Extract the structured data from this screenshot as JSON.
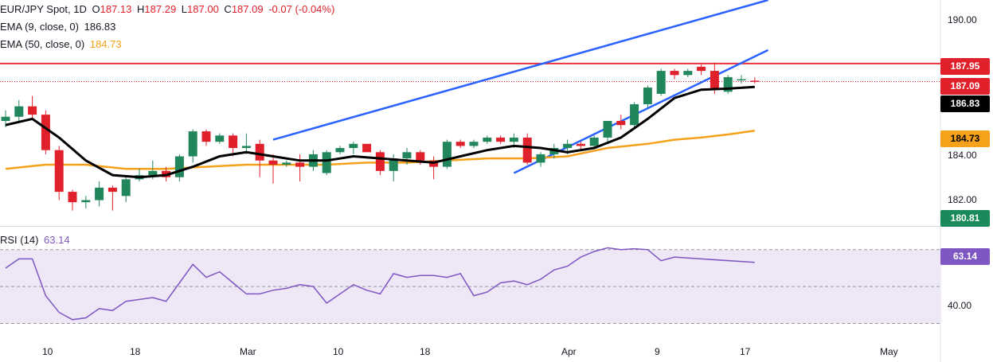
{
  "legend": {
    "symbol_line": {
      "name": "EUR/JPY Spot, 1D",
      "o_label": "O",
      "o_value": "187.13",
      "h_label": "H",
      "h_value": "187.29",
      "l_label": "L",
      "l_value": "187.00",
      "c_label": "C",
      "c_value": "187.09",
      "change": "-0.07 (-0.04%)"
    },
    "ema9_line": {
      "name": "EMA (9, close, 0)",
      "value": "186.83"
    },
    "ema50_line": {
      "name": "EMA (50, close, 0)",
      "value": "184.73"
    },
    "rsi_line": {
      "name": "RSI (14)",
      "value": "63.14"
    }
  },
  "colors": {
    "up": "#22865c",
    "down": "#e0202b",
    "ema9": "#000000",
    "ema50": "#f6a11a",
    "trendline": "#2962ff",
    "resistance": "#e8323c",
    "rsi_line": "#7e57c2",
    "rsi_band": "#ede7f6",
    "tag_green": "#1b8a5a",
    "tag_orange": "#f6a11a",
    "tag_red": "#e0202b",
    "tag_black": "#000000",
    "tag_purple": "#7e57c2"
  },
  "price_axis": {
    "ticks": [
      "190.00",
      "184.00",
      "182.00"
    ]
  },
  "rsi_axis": {
    "ticks": [
      "40.00"
    ]
  },
  "time_axis": {
    "ticks": [
      "10",
      "18",
      "Mar",
      "10",
      "18",
      "Apr",
      "9",
      "17",
      "May"
    ]
  },
  "price_tags": {
    "resistance": "187.95",
    "close": "187.09",
    "ema9": "186.83",
    "ema50": "184.73",
    "low": "180.81",
    "rsi": "63.14"
  },
  "chart_data": {
    "type": "candlestick",
    "title": "EUR/JPY Spot, 1D",
    "ylim": [
      180.2,
      191.0
    ],
    "rsi_ylim": [
      22,
      82
    ],
    "rsi_levels": [
      70,
      50,
      30
    ],
    "resistance_level": 187.95,
    "last_close": 187.09,
    "channel_upper": [
      [
        20,
        184.3
      ],
      [
        57,
        191.0
      ]
    ],
    "channel_lower": [
      [
        38,
        182.7
      ],
      [
        57,
        188.6
      ]
    ],
    "ohlc": [
      [
        0,
        185.2,
        185.7,
        184.9,
        185.4
      ],
      [
        1,
        185.4,
        186.2,
        185.2,
        185.9
      ],
      [
        2,
        185.9,
        186.4,
        185.3,
        185.5
      ],
      [
        3,
        185.5,
        185.7,
        183.6,
        183.8
      ],
      [
        4,
        183.8,
        184.0,
        181.4,
        181.8
      ],
      [
        5,
        181.8,
        181.9,
        180.9,
        181.3
      ],
      [
        6,
        181.3,
        181.6,
        181.0,
        181.4
      ],
      [
        7,
        181.4,
        182.3,
        181.1,
        182.0
      ],
      [
        8,
        182.0,
        182.1,
        180.9,
        181.8
      ],
      [
        9,
        181.6,
        182.6,
        181.3,
        182.4
      ],
      [
        10,
        182.4,
        182.9,
        182.3,
        182.6
      ],
      [
        11,
        182.6,
        183.3,
        182.4,
        182.8
      ],
      [
        12,
        182.8,
        183.0,
        182.3,
        182.5
      ],
      [
        13,
        182.5,
        183.6,
        182.3,
        183.5
      ],
      [
        14,
        183.5,
        184.8,
        183.2,
        184.7
      ],
      [
        15,
        184.7,
        184.8,
        184.0,
        184.2
      ],
      [
        16,
        184.2,
        184.6,
        184.1,
        184.5
      ],
      [
        17,
        184.5,
        184.6,
        183.5,
        183.9
      ],
      [
        18,
        183.9,
        184.6,
        183.6,
        184.0
      ],
      [
        19,
        184.1,
        184.3,
        182.5,
        183.3
      ]
    ],
    "ohlc_part2": [
      [
        20,
        183.3,
        183.6,
        182.2,
        183.1
      ],
      [
        21,
        183.1,
        183.3,
        183.0,
        183.2
      ],
      [
        22,
        183.2,
        183.6,
        182.3,
        183.0
      ],
      [
        23,
        183.0,
        183.8,
        182.8,
        183.6
      ],
      [
        24,
        182.7,
        183.8,
        182.6,
        183.7
      ],
      [
        25,
        183.7,
        184.0,
        183.6,
        183.9
      ],
      [
        26,
        183.9,
        184.2,
        183.6,
        184.1
      ],
      [
        27,
        184.1,
        184.1,
        183.8,
        183.7
      ],
      [
        28,
        183.7,
        183.8,
        182.6,
        182.8
      ],
      [
        29,
        182.8,
        183.6,
        182.3,
        183.4
      ],
      [
        30,
        183.4,
        183.9,
        183.1,
        183.7
      ],
      [
        31,
        183.7,
        183.8,
        183.1,
        183.3
      ],
      [
        32,
        183.3,
        183.5,
        182.4,
        183.0
      ],
      [
        33,
        183.0,
        184.3,
        182.9,
        184.2
      ],
      [
        34,
        184.2,
        184.3,
        183.9,
        184.0
      ],
      [
        35,
        184.0,
        184.3,
        183.9,
        184.2
      ],
      [
        36,
        184.2,
        184.5,
        184.1,
        184.4
      ],
      [
        37,
        184.4,
        184.5,
        184.1,
        184.2
      ],
      [
        38,
        184.2,
        184.6,
        183.9,
        184.4
      ],
      [
        39,
        184.4,
        184.6,
        183.1,
        183.2
      ]
    ],
    "ohlc_part3": [
      [
        40,
        183.2,
        183.7,
        183.0,
        183.6
      ],
      [
        41,
        183.6,
        184.1,
        183.4,
        183.9
      ],
      [
        42,
        183.9,
        184.3,
        183.6,
        184.1
      ],
      [
        43,
        184.1,
        184.2,
        183.8,
        184.0
      ],
      [
        44,
        184.0,
        184.5,
        183.9,
        184.4
      ],
      [
        45,
        184.4,
        185.2,
        184.2,
        185.2
      ],
      [
        46,
        185.2,
        185.5,
        184.8,
        185.0
      ],
      [
        47,
        185.0,
        186.1,
        184.9,
        186.0
      ],
      [
        48,
        186.0,
        186.9,
        185.8,
        186.8
      ],
      [
        49,
        186.5,
        187.7,
        186.4,
        187.6
      ],
      [
        50,
        187.6,
        187.7,
        187.2,
        187.4
      ],
      [
        51,
        187.4,
        187.7,
        187.3,
        187.6
      ],
      [
        52,
        187.8,
        187.9,
        187.4,
        187.6
      ],
      [
        53,
        187.6,
        188.0,
        186.5,
        186.7
      ],
      [
        54,
        186.6,
        187.4,
        186.5,
        187.3
      ],
      [
        55,
        187.2,
        187.4,
        187.0,
        187.2
      ],
      [
        56,
        187.13,
        187.29,
        187.0,
        187.09
      ]
    ],
    "ema9": [
      [
        0,
        185.0
      ],
      [
        2,
        185.3
      ],
      [
        4,
        184.4
      ],
      [
        6,
        183.3
      ],
      [
        8,
        182.6
      ],
      [
        10,
        182.5
      ],
      [
        12,
        182.6
      ],
      [
        14,
        183.0
      ],
      [
        16,
        183.5
      ],
      [
        18,
        183.7
      ],
      [
        20,
        183.5
      ],
      [
        22,
        183.3
      ],
      [
        24,
        183.3
      ],
      [
        26,
        183.5
      ],
      [
        28,
        183.4
      ],
      [
        30,
        183.3
      ],
      [
        32,
        183.2
      ],
      [
        34,
        183.5
      ],
      [
        36,
        183.8
      ],
      [
        38,
        184.0
      ],
      [
        40,
        183.9
      ],
      [
        42,
        183.7
      ],
      [
        44,
        183.9
      ],
      [
        46,
        184.4
      ],
      [
        48,
        185.3
      ],
      [
        50,
        186.3
      ],
      [
        52,
        186.7
      ],
      [
        54,
        186.75
      ],
      [
        56,
        186.83
      ]
    ],
    "ema50": [
      [
        0,
        182.9
      ],
      [
        3,
        183.1
      ],
      [
        6,
        183.1
      ],
      [
        9,
        182.9
      ],
      [
        12,
        182.9
      ],
      [
        15,
        183.0
      ],
      [
        18,
        183.1
      ],
      [
        21,
        183.1
      ],
      [
        24,
        183.1
      ],
      [
        27,
        183.2
      ],
      [
        30,
        183.2
      ],
      [
        33,
        183.3
      ],
      [
        36,
        183.4
      ],
      [
        39,
        183.4
      ],
      [
        42,
        183.5
      ],
      [
        45,
        183.9
      ],
      [
        48,
        184.1
      ],
      [
        50,
        184.3
      ],
      [
        52,
        184.4
      ],
      [
        54,
        184.55
      ],
      [
        56,
        184.73
      ]
    ],
    "rsi": [
      [
        0,
        60
      ],
      [
        1,
        65
      ],
      [
        2,
        65
      ],
      [
        3,
        45
      ],
      [
        4,
        36
      ],
      [
        5,
        32
      ],
      [
        6,
        33
      ],
      [
        7,
        38
      ],
      [
        8,
        37
      ],
      [
        9,
        42
      ],
      [
        10,
        43
      ],
      [
        11,
        44
      ],
      [
        12,
        42
      ],
      [
        13,
        52
      ],
      [
        14,
        62
      ],
      [
        15,
        55
      ],
      [
        16,
        58
      ],
      [
        17,
        52
      ],
      [
        18,
        46
      ],
      [
        19,
        46
      ],
      [
        20,
        48
      ],
      [
        21,
        49
      ],
      [
        22,
        51
      ],
      [
        23,
        50
      ],
      [
        24,
        41
      ],
      [
        25,
        46
      ],
      [
        26,
        51
      ],
      [
        27,
        48
      ],
      [
        28,
        46
      ],
      [
        29,
        57
      ],
      [
        30,
        55
      ],
      [
        31,
        56
      ],
      [
        32,
        56
      ],
      [
        33,
        55
      ],
      [
        34,
        57
      ],
      [
        35,
        45
      ],
      [
        36,
        47
      ],
      [
        37,
        52
      ],
      [
        38,
        53
      ],
      [
        39,
        51
      ],
      [
        40,
        54
      ],
      [
        41,
        59
      ],
      [
        42,
        61
      ],
      [
        43,
        66
      ],
      [
        44,
        69
      ],
      [
        45,
        71
      ],
      [
        46,
        70
      ],
      [
        47,
        70.5
      ],
      [
        48,
        70
      ],
      [
        49,
        64
      ],
      [
        50,
        66
      ],
      [
        51,
        65.5
      ],
      [
        52,
        65
      ],
      [
        56,
        63.14
      ]
    ]
  }
}
